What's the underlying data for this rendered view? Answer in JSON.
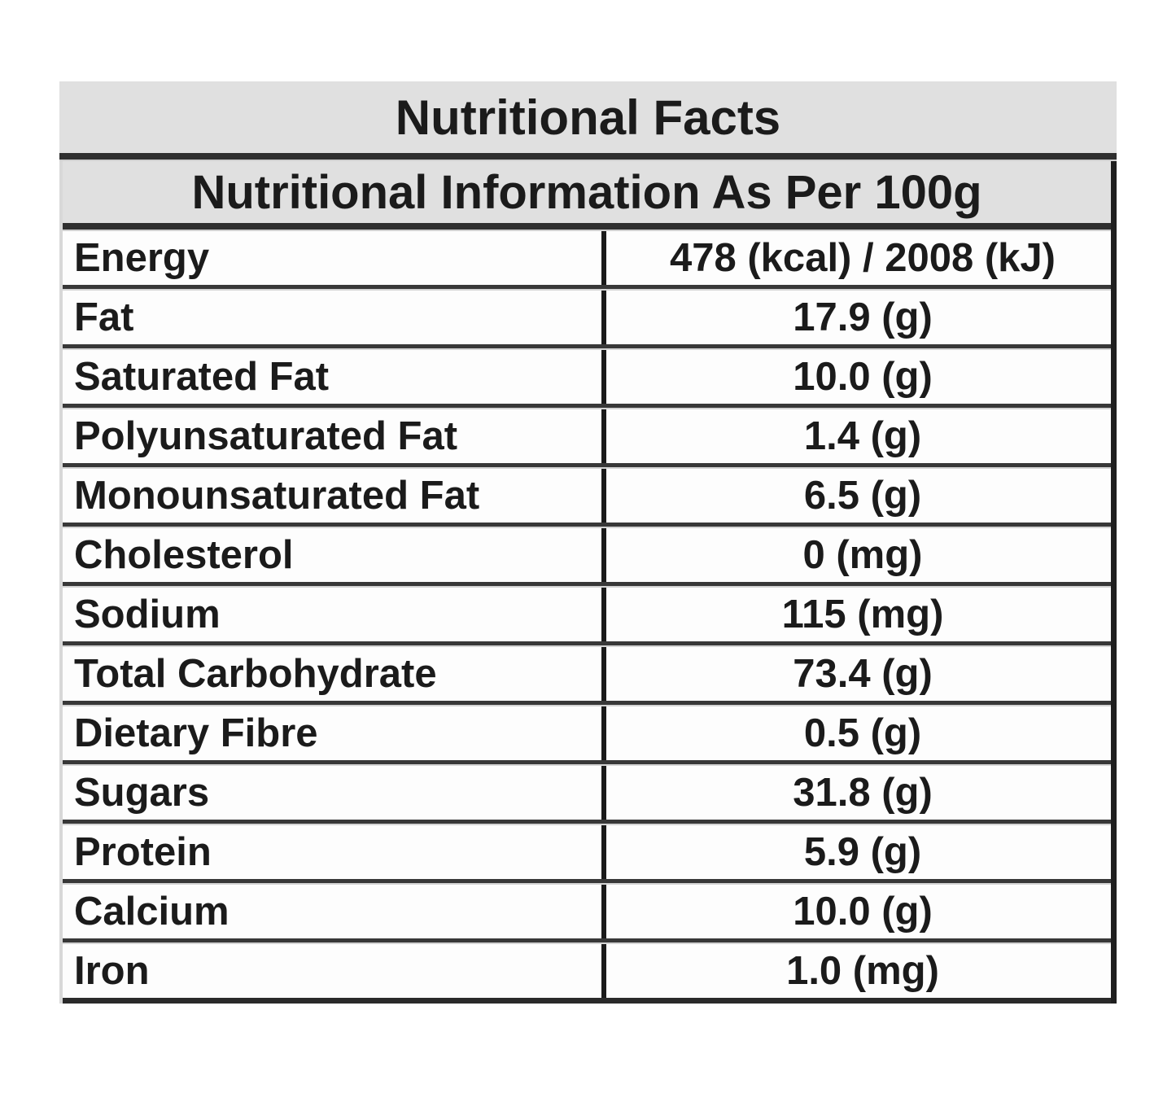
{
  "colors": {
    "header_bg": "#e0e0e0",
    "row_bg": "#fdfdfd",
    "text": "#1b1b1b",
    "separator": "#383838",
    "separator_ghost": "#d4d4d4",
    "column_divider": "#1a1a1a",
    "border_right": "#1f1f1f",
    "border_left": "#d8d8d8"
  },
  "table": {
    "title": "Nutritional Facts",
    "subtitle": "Nutritional Information As Per 100g",
    "rows": [
      {
        "label": "Energy",
        "value": "478 (kcal) / 2008 (kJ)"
      },
      {
        "label": "Fat",
        "value": "17.9 (g)"
      },
      {
        "label": "Saturated Fat",
        "value": "10.0 (g)"
      },
      {
        "label": "Polyunsaturated Fat",
        "value": "1.4 (g)"
      },
      {
        "label": "Monounsaturated Fat",
        "value": "6.5 (g)"
      },
      {
        "label": "Cholesterol",
        "value": "0 (mg)"
      },
      {
        "label": "Sodium",
        "value": "115 (mg)"
      },
      {
        "label": "Total Carbohydrate",
        "value": "73.4 (g)"
      },
      {
        "label": "Dietary Fibre",
        "value": "0.5 (g)"
      },
      {
        "label": "Sugars",
        "value": "31.8 (g)"
      },
      {
        "label": "Protein",
        "value": "5.9 (g)"
      },
      {
        "label": "Calcium",
        "value": "10.0 (g)"
      },
      {
        "label": "Iron",
        "value": "1.0 (mg)"
      }
    ]
  }
}
